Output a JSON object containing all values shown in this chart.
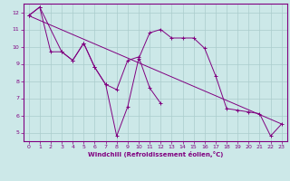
{
  "xlabel": "Windchill (Refroidissement éolien,°C)",
  "bg_color": "#cce8e8",
  "line_color": "#800080",
  "grid_color": "#aacccc",
  "axis_color": "#800080",
  "curve1_x": [
    0,
    1,
    2,
    3,
    4,
    5,
    6,
    7,
    8,
    9,
    10,
    11,
    12,
    13,
    14,
    15,
    16,
    17,
    18,
    19,
    20,
    21,
    22,
    23
  ],
  "curve1_y": [
    11.8,
    12.3,
    9.7,
    9.7,
    9.2,
    10.2,
    8.8,
    7.8,
    4.8,
    6.5,
    9.3,
    10.8,
    11.0,
    10.5,
    10.5,
    10.5,
    9.9,
    8.3,
    6.4,
    6.3,
    6.2,
    6.1,
    4.8,
    5.5
  ],
  "curve2_x": [
    0,
    1,
    3,
    4,
    5,
    6,
    7,
    8,
    9,
    10,
    11,
    12
  ],
  "curve2_y": [
    11.8,
    12.3,
    9.7,
    9.2,
    10.2,
    8.8,
    7.8,
    7.5,
    9.2,
    9.4,
    7.6,
    6.7
  ],
  "trend_x": [
    0,
    23
  ],
  "trend_y": [
    11.8,
    5.5
  ],
  "ylim": [
    4.5,
    12.5
  ],
  "xlim_min": -0.5,
  "xlim_max": 23.5,
  "yticks": [
    5,
    6,
    7,
    8,
    9,
    10,
    11,
    12
  ],
  "xticks": [
    0,
    1,
    2,
    3,
    4,
    5,
    6,
    7,
    8,
    9,
    10,
    11,
    12,
    13,
    14,
    15,
    16,
    17,
    18,
    19,
    20,
    21,
    22,
    23
  ]
}
